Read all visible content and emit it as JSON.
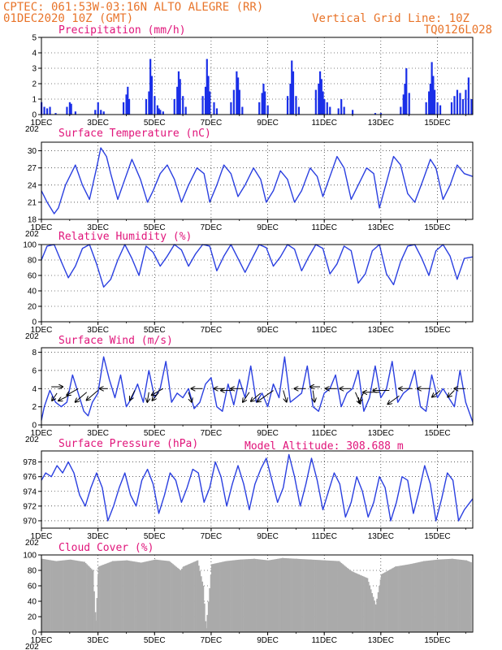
{
  "header": {
    "line1": "CPTEC:   061:53W-03:16N   ALTO ALEGRE (RR)",
    "line2": "01DEC2020 10Z (GMT)",
    "grid_note": "Vertical Grid Line: 10Z",
    "code": "TQ0126L028"
  },
  "colors": {
    "header": "#e8742a",
    "title": "#e0147a",
    "line": "#2a3fe0",
    "bar": "#1a2fe8",
    "cloud": "#aaaaaa",
    "arrow": "#000000"
  },
  "x_axis": {
    "day_start": 1,
    "day_end": 16.25,
    "ticks": [
      {
        "day": 1,
        "label": "1DEC"
      },
      {
        "day": 3,
        "label": "3DEC"
      },
      {
        "day": 5,
        "label": "5DEC"
      },
      {
        "day": 7,
        "label": "7DEC"
      },
      {
        "day": 9,
        "label": "9DEC"
      },
      {
        "day": 11,
        "label": "11DEC"
      },
      {
        "day": 13,
        "label": "13DEC"
      },
      {
        "day": 15,
        "label": "15DEC"
      }
    ],
    "year_stub": "202"
  },
  "chart_data": [
    {
      "id": "precip",
      "type": "bar",
      "title": "Precipitation (mm/h)",
      "ylim": [
        0,
        5
      ],
      "yticks": [
        0,
        1,
        2,
        3,
        4,
        5
      ],
      "days": [
        1.0,
        1.1,
        1.2,
        1.3,
        1.5,
        1.9,
        2.0,
        2.05,
        2.2,
        2.9,
        3.0,
        3.1,
        3.2,
        3.9,
        4.0,
        4.05,
        4.1,
        4.7,
        4.8,
        4.85,
        4.9,
        5.0,
        5.1,
        5.15,
        5.2,
        5.3,
        5.7,
        5.8,
        5.85,
        5.9,
        6.0,
        6.1,
        6.7,
        6.8,
        6.85,
        6.9,
        6.95,
        7.1,
        7.2,
        7.7,
        7.8,
        7.9,
        7.95,
        8.0,
        8.1,
        8.7,
        8.8,
        8.85,
        8.9,
        9.0,
        9.7,
        9.8,
        9.85,
        9.9,
        10.0,
        10.1,
        10.7,
        10.8,
        10.85,
        10.9,
        10.95,
        11.0,
        11.1,
        11.2,
        11.5,
        11.6,
        11.7,
        12.0,
        12.8,
        13.0,
        13.7,
        13.8,
        13.85,
        13.9,
        14.0,
        14.6,
        14.7,
        14.75,
        14.8,
        14.85,
        14.9,
        15.0,
        15.1,
        15.5,
        15.6,
        15.7,
        15.8,
        15.9,
        16.0,
        16.1,
        16.2
      ],
      "values": [
        0.8,
        0.5,
        0.4,
        0.5,
        0.1,
        0.5,
        0.8,
        0.7,
        0.2,
        0.3,
        0.8,
        0.3,
        0.2,
        0.8,
        1.3,
        1.8,
        1.0,
        1.0,
        1.5,
        3.6,
        2.5,
        1.2,
        0.6,
        0.4,
        0.3,
        0.2,
        1.0,
        1.8,
        2.8,
        2.3,
        1.2,
        0.5,
        1.2,
        1.8,
        3.6,
        2.5,
        1.5,
        0.8,
        0.4,
        0.8,
        1.6,
        2.8,
        2.4,
        1.6,
        0.5,
        0.8,
        1.4,
        2.0,
        1.5,
        0.6,
        1.2,
        2.0,
        3.5,
        2.8,
        1.2,
        0.5,
        1.6,
        2.0,
        2.8,
        2.3,
        1.5,
        1.0,
        0.8,
        0.5,
        0.4,
        1.0,
        0.5,
        0.3,
        0.1,
        0.1,
        0.5,
        1.3,
        2.0,
        3.0,
        1.4,
        0.8,
        1.5,
        2.0,
        3.4,
        2.5,
        1.6,
        0.8,
        0.6,
        0.8,
        1.2,
        1.6,
        1.4,
        1.0,
        1.6,
        2.4,
        1.0
      ]
    },
    {
      "id": "temp",
      "type": "line",
      "title": "Surface Temperature (nC)",
      "ylim": [
        18,
        31.5
      ],
      "yticks": [
        18,
        21,
        24,
        27,
        30
      ],
      "x": [
        1.0,
        1.2,
        1.45,
        1.6,
        1.85,
        2.2,
        2.45,
        2.7,
        2.95,
        3.1,
        3.3,
        3.45,
        3.7,
        3.95,
        4.2,
        4.5,
        4.75,
        4.95,
        5.2,
        5.45,
        5.7,
        5.95,
        6.2,
        6.5,
        6.75,
        6.95,
        7.2,
        7.45,
        7.7,
        7.95,
        8.2,
        8.5,
        8.75,
        8.95,
        9.2,
        9.45,
        9.7,
        9.95,
        10.2,
        10.5,
        10.75,
        10.95,
        11.2,
        11.45,
        11.7,
        11.95,
        12.2,
        12.5,
        12.75,
        12.95,
        13.2,
        13.45,
        13.7,
        13.95,
        14.2,
        14.5,
        14.75,
        14.95,
        15.2,
        15.45,
        15.7,
        15.95,
        16.25
      ],
      "y": [
        23,
        21,
        19,
        20,
        24,
        27.5,
        24,
        21.5,
        27,
        30.5,
        29,
        26,
        21.5,
        25,
        28.5,
        25,
        21,
        23,
        26,
        27.5,
        25,
        21,
        24,
        27,
        26,
        21,
        24,
        27.5,
        26,
        22,
        24,
        27,
        25,
        21,
        23,
        26.5,
        25,
        21,
        23,
        27,
        25.5,
        22,
        25.5,
        29,
        27,
        21.5,
        24,
        27,
        26,
        20,
        24.5,
        29,
        27.5,
        22.5,
        21,
        25,
        28.5,
        27,
        21.5,
        24,
        27.5,
        26,
        25.5
      ]
    },
    {
      "id": "rh",
      "type": "line",
      "title": "Relative Humidity (%)",
      "ylim": [
        0,
        100
      ],
      "yticks": [
        0,
        20,
        40,
        60,
        80,
        100
      ],
      "x": [
        1.0,
        1.2,
        1.45,
        1.7,
        1.95,
        2.2,
        2.45,
        2.7,
        2.95,
        3.2,
        3.45,
        3.7,
        3.95,
        4.2,
        4.45,
        4.7,
        4.95,
        5.2,
        5.45,
        5.7,
        5.95,
        6.2,
        6.45,
        6.7,
        6.95,
        7.2,
        7.45,
        7.7,
        7.95,
        8.2,
        8.45,
        8.7,
        8.95,
        9.2,
        9.45,
        9.7,
        9.95,
        10.2,
        10.45,
        10.7,
        10.95,
        11.2,
        11.45,
        11.7,
        11.95,
        12.2,
        12.45,
        12.7,
        12.95,
        13.2,
        13.45,
        13.7,
        13.95,
        14.2,
        14.45,
        14.7,
        14.95,
        15.2,
        15.45,
        15.7,
        15.95,
        16.25
      ],
      "y": [
        80,
        98,
        100,
        78,
        57,
        72,
        95,
        100,
        75,
        45,
        55,
        80,
        100,
        82,
        60,
        98,
        90,
        72,
        85,
        100,
        93,
        72,
        88,
        100,
        98,
        66,
        85,
        100,
        82,
        64,
        82,
        100,
        96,
        72,
        84,
        100,
        94,
        66,
        84,
        100,
        95,
        62,
        75,
        98,
        92,
        50,
        62,
        92,
        100,
        62,
        48,
        78,
        98,
        100,
        82,
        60,
        92,
        100,
        85,
        55,
        82,
        84
      ]
    },
    {
      "id": "wind",
      "type": "line",
      "title": "Surface Wind (m/s)",
      "ylim": [
        0,
        8.5
      ],
      "yticks": [
        0,
        2,
        4,
        6,
        8
      ],
      "x": [
        1.0,
        1.1,
        1.3,
        1.5,
        1.7,
        1.9,
        2.1,
        2.3,
        2.5,
        2.65,
        2.8,
        3.0,
        3.2,
        3.4,
        3.6,
        3.8,
        4.0,
        4.2,
        4.4,
        4.6,
        4.8,
        5.0,
        5.2,
        5.4,
        5.6,
        5.8,
        6.0,
        6.2,
        6.4,
        6.6,
        6.8,
        7.0,
        7.2,
        7.4,
        7.6,
        7.8,
        8.0,
        8.2,
        8.4,
        8.6,
        8.8,
        9.0,
        9.2,
        9.4,
        9.6,
        9.8,
        10.0,
        10.2,
        10.4,
        10.6,
        10.8,
        11.0,
        11.2,
        11.4,
        11.6,
        11.8,
        12.0,
        12.2,
        12.4,
        12.6,
        12.8,
        13.0,
        13.2,
        13.4,
        13.6,
        13.8,
        14.0,
        14.2,
        14.4,
        14.6,
        14.8,
        15.0,
        15.2,
        15.4,
        15.6,
        15.8,
        16.0,
        16.25
      ],
      "y": [
        0.5,
        2.0,
        3.8,
        2.5,
        2.0,
        2.5,
        5.5,
        3.5,
        1.5,
        1.0,
        2.5,
        3.5,
        7.5,
        5.0,
        3.0,
        5.5,
        2.0,
        3.0,
        4.5,
        2.5,
        6.0,
        3.0,
        4.0,
        7.0,
        2.5,
        3.5,
        3.0,
        4.0,
        1.8,
        2.5,
        4.5,
        5.2,
        2.0,
        1.5,
        4.5,
        2.2,
        5.0,
        3.0,
        6.5,
        2.5,
        3.5,
        2.0,
        4.5,
        3.0,
        7.5,
        2.5,
        3.0,
        3.5,
        6.5,
        2.0,
        1.5,
        3.5,
        4.0,
        5.5,
        2.0,
        3.5,
        4.0,
        6.0,
        1.5,
        3.0,
        6.5,
        3.0,
        4.0,
        7.0,
        2.5,
        3.5,
        4.0,
        6.0,
        2.0,
        1.5,
        5.5,
        3.0,
        4.0,
        3.0,
        2.0,
        6.0,
        2.5,
        0.3
      ]
    },
    {
      "id": "press",
      "type": "line",
      "title": "Surface Pressure (hPa)",
      "ylim": [
        969,
        979.5
      ],
      "yticks": [
        970,
        972,
        974,
        976,
        978
      ],
      "x": [
        1.0,
        1.15,
        1.35,
        1.55,
        1.75,
        1.95,
        2.15,
        2.35,
        2.55,
        2.75,
        2.95,
        3.15,
        3.35,
        3.55,
        3.75,
        3.95,
        4.15,
        4.35,
        4.55,
        4.75,
        4.95,
        5.15,
        5.35,
        5.55,
        5.75,
        5.95,
        6.15,
        6.35,
        6.55,
        6.75,
        6.95,
        7.15,
        7.35,
        7.55,
        7.75,
        7.95,
        8.15,
        8.35,
        8.55,
        8.75,
        8.95,
        9.15,
        9.35,
        9.55,
        9.75,
        9.95,
        10.15,
        10.35,
        10.55,
        10.75,
        10.95,
        11.15,
        11.35,
        11.55,
        11.75,
        11.95,
        12.15,
        12.35,
        12.55,
        12.75,
        12.95,
        13.15,
        13.35,
        13.55,
        13.75,
        13.95,
        14.15,
        14.35,
        14.55,
        14.75,
        14.95,
        15.15,
        15.35,
        15.55,
        15.75,
        15.95,
        16.25
      ],
      "y": [
        975.5,
        976.5,
        976.0,
        977.5,
        976.5,
        978.0,
        976.5,
        973.5,
        972.0,
        974.5,
        976.5,
        974.5,
        970.0,
        972.0,
        974.5,
        976.5,
        973.5,
        972.0,
        975.5,
        977.0,
        975.0,
        971.0,
        973.5,
        976.5,
        975.5,
        972.5,
        974.5,
        977.0,
        976.5,
        972.5,
        974.5,
        978.0,
        976.0,
        972.0,
        975.0,
        977.5,
        975.0,
        971.5,
        975.0,
        977.0,
        978.5,
        975.5,
        972.5,
        974.5,
        979.0,
        976.0,
        972.0,
        975.0,
        978.5,
        975.5,
        971.5,
        974.0,
        976.5,
        975.0,
        970.5,
        972.5,
        976.0,
        974.0,
        970.5,
        972.5,
        976.0,
        974.5,
        970.0,
        972.5,
        976.0,
        975.5,
        971.0,
        974.0,
        977.5,
        975.0,
        970.0,
        973.0,
        976.5,
        975.5,
        970.0,
        971.5,
        973.0
      ]
    },
    {
      "id": "cloud",
      "type": "bar",
      "title": "Cloud Cover (%)",
      "ylim": [
        0,
        100
      ],
      "yticks": [
        0,
        20,
        40,
        60,
        80,
        100
      ],
      "days": [
        1.0,
        1.5,
        2.0,
        2.5,
        2.8,
        2.9,
        3.0,
        3.5,
        4.0,
        4.5,
        5.0,
        5.5,
        5.9,
        6.0,
        6.5,
        6.7,
        6.8,
        7.0,
        7.5,
        8.0,
        8.5,
        9.0,
        9.5,
        10.0,
        10.5,
        11.0,
        11.5,
        11.9,
        12.0,
        12.5,
        12.8,
        13.0,
        13.5,
        14.0,
        14.5,
        15.0,
        15.5,
        16.0,
        16.2
      ],
      "values": [
        95,
        92,
        94,
        91,
        80,
        15,
        85,
        92,
        93,
        90,
        94,
        92,
        80,
        85,
        93,
        60,
        5,
        88,
        92,
        94,
        95,
        93,
        96,
        95,
        94,
        93,
        92,
        80,
        78,
        70,
        35,
        75,
        85,
        88,
        92,
        94,
        95,
        93,
        90
      ]
    }
  ],
  "subtitle_extra": "Model Altitude: 308.688 m",
  "wind_arrows": [
    {
      "day": 1.35,
      "wy": 4.2,
      "dx": 14,
      "dy": 0
    },
    {
      "day": 1.55,
      "wy": 3.5,
      "dx": -6,
      "dy": 9
    },
    {
      "day": 1.95,
      "wy": 3.2,
      "dx": -12,
      "dy": 6
    },
    {
      "day": 2.3,
      "wy": 4.0,
      "dx": -14,
      "dy": 8
    },
    {
      "day": 2.6,
      "wy": 3.6,
      "dx": -14,
      "dy": 12
    },
    {
      "day": 3.0,
      "wy": 3.8,
      "dx": -14,
      "dy": 12
    },
    {
      "day": 3.35,
      "wy": 4.0,
      "dx": -10,
      "dy": 0
    },
    {
      "day": 4.3,
      "wy": 3.8,
      "dx": -6,
      "dy": 12
    },
    {
      "day": 4.8,
      "wy": 3.6,
      "dx": -2,
      "dy": 12
    },
    {
      "day": 5.15,
      "wy": 3.6,
      "dx": -8,
      "dy": 10
    },
    {
      "day": 5.3,
      "wy": 4.0,
      "dx": -14,
      "dy": 8
    },
    {
      "day": 6.2,
      "wy": 3.6,
      "dx": 4,
      "dy": 12
    },
    {
      "day": 6.7,
      "wy": 4.0,
      "dx": -14,
      "dy": 0
    },
    {
      "day": 7.45,
      "wy": 4.0,
      "dx": -12,
      "dy": 0
    },
    {
      "day": 7.75,
      "wy": 3.8,
      "dx": -14,
      "dy": 0
    },
    {
      "day": 8.1,
      "wy": 4.0,
      "dx": -14,
      "dy": 0
    },
    {
      "day": 8.35,
      "wy": 3.6,
      "dx": -8,
      "dy": 12
    },
    {
      "day": 8.75,
      "wy": 3.5,
      "dx": -12,
      "dy": 10
    },
    {
      "day": 9.2,
      "wy": 3.8,
      "dx": -20,
      "dy": 14
    },
    {
      "day": 9.55,
      "wy": 3.8,
      "dx": 4,
      "dy": 14
    },
    {
      "day": 10.35,
      "wy": 4.0,
      "dx": -14,
      "dy": 0
    },
    {
      "day": 10.6,
      "wy": 3.8,
      "dx": 2,
      "dy": 14
    },
    {
      "day": 10.85,
      "wy": 4.2,
      "dx": -12,
      "dy": 0
    },
    {
      "day": 11.45,
      "wy": 4.0,
      "dx": -14,
      "dy": 0
    },
    {
      "day": 11.95,
      "wy": 4.0,
      "dx": -14,
      "dy": 0
    },
    {
      "day": 12.1,
      "wy": 3.6,
      "dx": 6,
      "dy": 14
    },
    {
      "day": 12.4,
      "wy": 3.6,
      "dx": -6,
      "dy": 12
    },
    {
      "day": 12.95,
      "wy": 3.6,
      "dx": -20,
      "dy": 0
    },
    {
      "day": 13.3,
      "wy": 3.8,
      "dx": -20,
      "dy": 0
    },
    {
      "day": 13.65,
      "wy": 3.2,
      "dx": -14,
      "dy": 10
    },
    {
      "day": 14.1,
      "wy": 4.0,
      "dx": -16,
      "dy": 0
    },
    {
      "day": 14.75,
      "wy": 4.0,
      "dx": -16,
      "dy": 0
    },
    {
      "day": 15.1,
      "wy": 3.8,
      "dx": -10,
      "dy": 8
    },
    {
      "day": 15.6,
      "wy": 3.8,
      "dx": -8,
      "dy": 8
    },
    {
      "day": 16.0,
      "wy": 4.0,
      "dx": -14,
      "dy": 0
    }
  ]
}
